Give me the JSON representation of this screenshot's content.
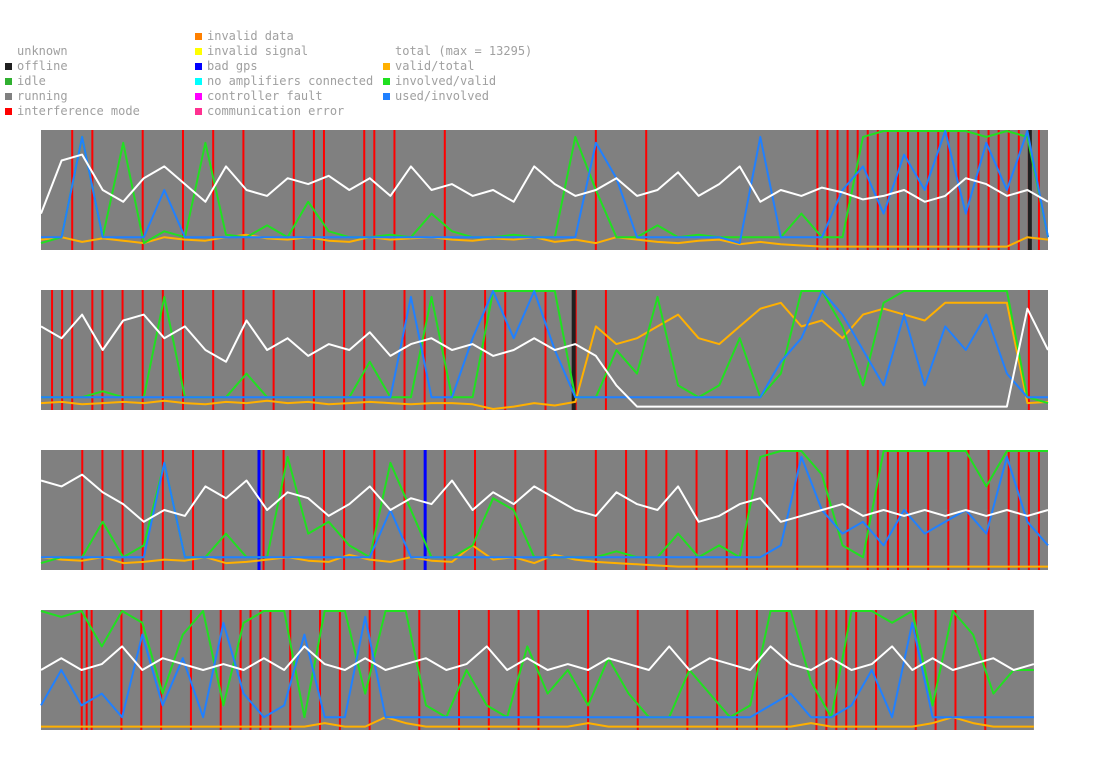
{
  "legend": {
    "status_column": [
      {
        "label": "unknown",
        "color": ""
      },
      {
        "label": "offline",
        "color": "#202020"
      },
      {
        "label": "idle",
        "color": "#30b030"
      },
      {
        "label": "running",
        "color": "#808080"
      },
      {
        "label": "interference mode",
        "color": "#ff0000"
      }
    ],
    "error_column": [
      {
        "label": "invalid data",
        "color": "#ff8000"
      },
      {
        "label": "invalid signal",
        "color": "#ffff00"
      },
      {
        "label": "bad gps",
        "color": "#0000ff"
      },
      {
        "label": "no amplifiers connected",
        "color": "#00ffff"
      },
      {
        "label": "controller fault",
        "color": "#ff00ff"
      },
      {
        "label": "communication error",
        "color": "#ff3090"
      }
    ],
    "ratio_column": [
      {
        "label": "total (max = 13295)",
        "color": ""
      },
      {
        "label": "valid/total",
        "color": "#ffb000"
      },
      {
        "label": "involved/valid",
        "color": "#20e020"
      },
      {
        "label": "used/involved",
        "color": "#2080ff"
      }
    ]
  },
  "colors": {
    "running": "#808080",
    "interference": "#ff0000",
    "offline": "#202020",
    "bad_gps": "#0000ff",
    "total": "#ffffff",
    "valid_total": "#ffb000",
    "involved_valid": "#20e020",
    "used_involved": "#2080ff"
  },
  "chart_data": {
    "type": "line",
    "y_range": [
      0,
      1
    ],
    "series_names": [
      "total (max = 13295)",
      "valid/total",
      "involved/valid",
      "used/involved"
    ],
    "strips": [
      {
        "span": [
          0,
          1
        ],
        "interference": [
          0.03,
          0.05,
          0.1,
          0.14,
          0.17,
          0.2,
          0.25,
          0.27,
          0.28,
          0.32,
          0.33,
          0.35,
          0.4,
          0.55,
          0.6,
          0.77,
          0.78,
          0.79,
          0.8,
          0.81,
          0.82,
          0.83,
          0.84,
          0.85,
          0.86,
          0.87,
          0.88,
          0.89,
          0.9,
          0.91,
          0.92,
          0.93,
          0.94,
          0.95,
          0.96,
          0.97,
          0.98,
          0.99
        ],
        "offline": [
          0.98
        ],
        "bad_gps": [],
        "total": [
          0.3,
          0.75,
          0.8,
          0.5,
          0.4,
          0.6,
          0.7,
          0.55,
          0.4,
          0.7,
          0.5,
          0.45,
          0.6,
          0.55,
          0.62,
          0.5,
          0.6,
          0.45,
          0.7,
          0.5,
          0.55,
          0.45,
          0.5,
          0.4,
          0.7,
          0.55,
          0.45,
          0.5,
          0.6,
          0.45,
          0.5,
          0.65,
          0.45,
          0.55,
          0.7,
          0.4,
          0.5,
          0.45,
          0.52,
          0.48,
          0.42,
          0.45,
          0.5,
          0.4,
          0.45,
          0.6,
          0.55,
          0.45,
          0.5,
          0.4
        ],
        "valid_total": [
          0.08,
          0.1,
          0.06,
          0.09,
          0.07,
          0.05,
          0.1,
          0.08,
          0.07,
          0.1,
          0.12,
          0.09,
          0.08,
          0.1,
          0.07,
          0.06,
          0.1,
          0.08,
          0.09,
          0.1,
          0.08,
          0.07,
          0.09,
          0.08,
          0.1,
          0.06,
          0.08,
          0.05,
          0.1,
          0.08,
          0.06,
          0.05,
          0.07,
          0.08,
          0.04,
          0.06,
          0.04,
          0.03,
          0.02,
          0.02,
          0.02,
          0.02,
          0.02,
          0.02,
          0.02,
          0.02,
          0.02,
          0.02,
          0.1,
          0.08
        ],
        "involved_valid": [
          0.05,
          0.1,
          0.95,
          0.1,
          0.9,
          0.05,
          0.15,
          0.1,
          0.9,
          0.12,
          0.1,
          0.2,
          0.1,
          0.4,
          0.15,
          0.1,
          0.1,
          0.12,
          0.1,
          0.3,
          0.15,
          0.1,
          0.1,
          0.12,
          0.1,
          0.1,
          0.95,
          0.5,
          0.1,
          0.1,
          0.2,
          0.1,
          0.12,
          0.1,
          0.1,
          0.1,
          0.1,
          0.3,
          0.1,
          0.1,
          0.95,
          1.0,
          1.0,
          1.0,
          1.0,
          1.0,
          0.95,
          1.0,
          0.95,
          0.1
        ],
        "used_involved": [
          0.1,
          0.1,
          0.95,
          0.1,
          0.1,
          0.1,
          0.5,
          0.1,
          0.1,
          0.1,
          0.1,
          0.1,
          0.1,
          0.1,
          0.1,
          0.1,
          0.1,
          0.1,
          0.1,
          0.1,
          0.1,
          0.1,
          0.1,
          0.1,
          0.1,
          0.1,
          0.1,
          0.9,
          0.6,
          0.1,
          0.1,
          0.1,
          0.1,
          0.1,
          0.05,
          0.95,
          0.1,
          0.1,
          0.1,
          0.5,
          0.7,
          0.3,
          0.8,
          0.5,
          1.0,
          0.3,
          0.9,
          0.5,
          1.0,
          0.1
        ]
      },
      {
        "span": [
          0,
          1
        ],
        "interference": [
          0.01,
          0.02,
          0.03,
          0.05,
          0.06,
          0.08,
          0.1,
          0.12,
          0.14,
          0.17,
          0.2,
          0.23,
          0.27,
          0.3,
          0.32,
          0.36,
          0.38,
          0.4,
          0.44,
          0.46,
          0.5,
          0.53,
          0.56,
          0.98
        ],
        "offline": [
          0.527
        ],
        "bad_gps": [],
        "total": [
          0.7,
          0.6,
          0.8,
          0.5,
          0.75,
          0.8,
          0.6,
          0.7,
          0.5,
          0.4,
          0.75,
          0.5,
          0.6,
          0.45,
          0.55,
          0.5,
          0.65,
          0.45,
          0.55,
          0.6,
          0.5,
          0.55,
          0.45,
          0.5,
          0.6,
          0.5,
          0.55,
          0.45,
          0.2,
          0.02,
          0.02,
          0.02,
          0.02,
          0.02,
          0.02,
          0.02,
          0.02,
          0.02,
          0.02,
          0.02,
          0.02,
          0.02,
          0.02,
          0.02,
          0.02,
          0.02,
          0.02,
          0.02,
          0.85,
          0.5
        ],
        "valid_total": [
          0.05,
          0.06,
          0.04,
          0.05,
          0.06,
          0.05,
          0.07,
          0.05,
          0.04,
          0.06,
          0.05,
          0.07,
          0.05,
          0.06,
          0.04,
          0.05,
          0.06,
          0.05,
          0.04,
          0.05,
          0.05,
          0.04,
          0.0,
          0.02,
          0.05,
          0.03,
          0.06,
          0.7,
          0.55,
          0.6,
          0.7,
          0.8,
          0.6,
          0.55,
          0.7,
          0.85,
          0.9,
          0.7,
          0.75,
          0.6,
          0.8,
          0.85,
          0.8,
          0.75,
          0.9,
          0.9,
          0.9,
          0.9,
          0.05,
          0.06
        ],
        "involved_valid": [
          0.1,
          0.1,
          0.1,
          0.15,
          0.1,
          0.1,
          0.95,
          0.1,
          0.1,
          0.1,
          0.3,
          0.1,
          0.1,
          0.1,
          0.1,
          0.1,
          0.4,
          0.1,
          0.1,
          0.95,
          0.1,
          0.1,
          1.0,
          1.0,
          1.0,
          1.0,
          0.1,
          0.1,
          0.5,
          0.3,
          0.95,
          0.2,
          0.1,
          0.2,
          0.6,
          0.1,
          0.3,
          1.0,
          1.0,
          0.7,
          0.2,
          0.9,
          1.0,
          1.0,
          1.0,
          1.0,
          1.0,
          1.0,
          0.1,
          0.05
        ],
        "used_involved": [
          0.1,
          0.1,
          0.1,
          0.1,
          0.1,
          0.1,
          0.1,
          0.1,
          0.1,
          0.1,
          0.1,
          0.1,
          0.1,
          0.1,
          0.1,
          0.1,
          0.1,
          0.1,
          0.95,
          0.1,
          0.1,
          0.6,
          1.0,
          0.6,
          1.0,
          0.5,
          0.1,
          0.1,
          0.1,
          0.1,
          0.1,
          0.1,
          0.1,
          0.1,
          0.1,
          0.1,
          0.4,
          0.6,
          1.0,
          0.8,
          0.5,
          0.2,
          0.8,
          0.2,
          0.7,
          0.5,
          0.8,
          0.3,
          0.1,
          0.1
        ]
      },
      {
        "span": [
          0,
          1
        ],
        "interference": [
          0.04,
          0.06,
          0.08,
          0.1,
          0.12,
          0.15,
          0.18,
          0.22,
          0.24,
          0.28,
          0.3,
          0.33,
          0.36,
          0.4,
          0.43,
          0.47,
          0.5,
          0.55,
          0.58,
          0.6,
          0.62,
          0.65,
          0.68,
          0.7,
          0.72,
          0.75,
          0.78,
          0.8,
          0.82,
          0.8,
          0.83,
          0.84,
          0.85,
          0.86,
          0.88,
          0.9,
          0.92,
          0.94,
          0.96,
          0.97,
          0.98,
          0.99
        ],
        "offline": [],
        "bad_gps": [
          0.215,
          0.38
        ],
        "total": [
          0.75,
          0.7,
          0.8,
          0.65,
          0.55,
          0.4,
          0.5,
          0.45,
          0.7,
          0.6,
          0.75,
          0.5,
          0.65,
          0.6,
          0.45,
          0.55,
          0.7,
          0.5,
          0.6,
          0.55,
          0.75,
          0.5,
          0.65,
          0.55,
          0.7,
          0.6,
          0.5,
          0.45,
          0.65,
          0.55,
          0.5,
          0.7,
          0.4,
          0.45,
          0.55,
          0.6,
          0.4,
          0.45,
          0.5,
          0.55,
          0.45,
          0.5,
          0.45,
          0.5,
          0.45,
          0.5,
          0.45,
          0.5,
          0.45,
          0.5
        ],
        "valid_total": [
          0.1,
          0.08,
          0.07,
          0.1,
          0.05,
          0.06,
          0.08,
          0.07,
          0.1,
          0.05,
          0.06,
          0.08,
          0.1,
          0.07,
          0.06,
          0.12,
          0.08,
          0.06,
          0.1,
          0.07,
          0.06,
          0.2,
          0.08,
          0.1,
          0.05,
          0.12,
          0.08,
          0.06,
          0.05,
          0.04,
          0.03,
          0.02,
          0.02,
          0.02,
          0.02,
          0.02,
          0.02,
          0.02,
          0.02,
          0.02,
          0.02,
          0.02,
          0.02,
          0.02,
          0.02,
          0.02,
          0.02,
          0.02,
          0.02,
          0.02
        ],
        "involved_valid": [
          0.05,
          0.1,
          0.1,
          0.4,
          0.1,
          0.2,
          0.9,
          0.1,
          0.1,
          0.3,
          0.1,
          0.1,
          0.95,
          0.3,
          0.4,
          0.2,
          0.1,
          0.9,
          0.5,
          0.1,
          0.1,
          0.2,
          0.6,
          0.5,
          0.1,
          0.1,
          0.1,
          0.1,
          0.15,
          0.1,
          0.1,
          0.3,
          0.1,
          0.2,
          0.1,
          0.95,
          1.0,
          1.0,
          0.8,
          0.2,
          0.1,
          1.0,
          1.0,
          1.0,
          1.0,
          1.0,
          0.7,
          1.0,
          1.0,
          1.0
        ],
        "used_involved": [
          0.1,
          0.1,
          0.1,
          0.1,
          0.1,
          0.1,
          0.9,
          0.1,
          0.1,
          0.1,
          0.1,
          0.1,
          0.1,
          0.1,
          0.1,
          0.1,
          0.1,
          0.5,
          0.1,
          0.1,
          0.1,
          0.1,
          0.1,
          0.1,
          0.1,
          0.1,
          0.1,
          0.1,
          0.1,
          0.1,
          0.1,
          0.1,
          0.1,
          0.1,
          0.1,
          0.1,
          0.2,
          0.95,
          0.5,
          0.3,
          0.4,
          0.2,
          0.5,
          0.3,
          0.4,
          0.5,
          0.3,
          0.95,
          0.4,
          0.2
        ]
      },
      {
        "span": [
          0,
          0.986
        ],
        "interference": [
          0.04,
          0.045,
          0.05,
          0.08,
          0.1,
          0.12,
          0.15,
          0.18,
          0.2,
          0.2,
          0.21,
          0.22,
          0.23,
          0.25,
          0.28,
          0.3,
          0.33,
          0.38,
          0.42,
          0.45,
          0.48,
          0.5,
          0.55,
          0.6,
          0.65,
          0.68,
          0.7,
          0.72,
          0.75,
          0.78,
          0.79,
          0.8,
          0.81,
          0.82,
          0.84,
          0.88,
          0.9,
          0.92,
          0.95
        ],
        "offline": [],
        "bad_gps": [],
        "total": [
          0.5,
          0.6,
          0.5,
          0.55,
          0.7,
          0.5,
          0.6,
          0.55,
          0.5,
          0.55,
          0.5,
          0.6,
          0.5,
          0.7,
          0.55,
          0.5,
          0.6,
          0.5,
          0.55,
          0.6,
          0.5,
          0.55,
          0.7,
          0.5,
          0.6,
          0.5,
          0.55,
          0.5,
          0.6,
          0.55,
          0.5,
          0.7,
          0.5,
          0.6,
          0.55,
          0.5,
          0.7,
          0.55,
          0.5,
          0.6,
          0.5,
          0.55,
          0.7,
          0.5,
          0.6,
          0.5,
          0.55,
          0.6,
          0.5,
          0.55
        ],
        "valid_total": [
          0.02,
          0.02,
          0.02,
          0.02,
          0.02,
          0.02,
          0.02,
          0.02,
          0.02,
          0.02,
          0.02,
          0.02,
          0.02,
          0.02,
          0.05,
          0.02,
          0.02,
          0.1,
          0.05,
          0.02,
          0.02,
          0.02,
          0.02,
          0.02,
          0.02,
          0.02,
          0.02,
          0.05,
          0.02,
          0.02,
          0.02,
          0.02,
          0.02,
          0.02,
          0.02,
          0.02,
          0.02,
          0.02,
          0.05,
          0.02,
          0.02,
          0.02,
          0.02,
          0.02,
          0.05,
          0.1,
          0.05,
          0.02,
          0.02,
          0.02
        ],
        "involved_valid": [
          1.0,
          0.95,
          1.0,
          0.7,
          1.0,
          0.9,
          0.3,
          0.8,
          1.0,
          0.2,
          0.9,
          1.0,
          1.0,
          0.1,
          1.0,
          1.0,
          0.3,
          1.0,
          1.0,
          0.2,
          0.1,
          0.5,
          0.2,
          0.1,
          0.7,
          0.3,
          0.5,
          0.2,
          0.6,
          0.3,
          0.1,
          0.1,
          0.5,
          0.3,
          0.1,
          0.2,
          1.0,
          1.0,
          0.4,
          0.1,
          1.0,
          1.0,
          0.9,
          1.0,
          0.2,
          1.0,
          0.8,
          0.3,
          0.5,
          0.5
        ],
        "used_involved": [
          0.2,
          0.5,
          0.2,
          0.3,
          0.1,
          0.8,
          0.2,
          0.6,
          0.1,
          0.9,
          0.3,
          0.1,
          0.2,
          0.8,
          0.1,
          0.1,
          0.95,
          0.1,
          0.1,
          0.1,
          0.1,
          0.1,
          0.1,
          0.1,
          0.1,
          0.1,
          0.1,
          0.1,
          0.1,
          0.1,
          0.1,
          0.1,
          0.1,
          0.1,
          0.1,
          0.1,
          0.2,
          0.3,
          0.1,
          0.1,
          0.2,
          0.5,
          0.1,
          0.9,
          0.1,
          0.1,
          0.1,
          0.1,
          0.1,
          0.1
        ]
      }
    ]
  }
}
